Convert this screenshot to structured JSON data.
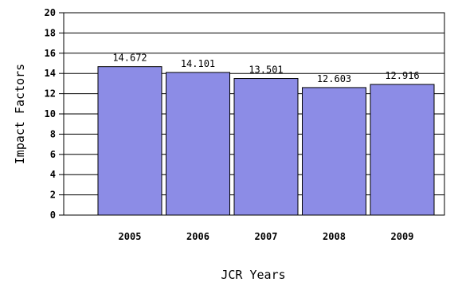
{
  "chart_data": {
    "type": "bar",
    "categories": [
      "2005",
      "2006",
      "2007",
      "2008",
      "2009"
    ],
    "values": [
      14.672,
      14.101,
      13.501,
      12.603,
      12.916
    ],
    "data_labels": [
      "14.672",
      "14.101",
      "13.501",
      "12.603",
      "12.916"
    ],
    "title": "",
    "xlabel": "JCR Years",
    "ylabel": "Impact Factors",
    "ylim": [
      0,
      20
    ],
    "yticks": [
      "0",
      "2",
      "4",
      "6",
      "8",
      "10",
      "12",
      "14",
      "16",
      "18",
      "20"
    ],
    "grid": true,
    "bar_color": "#8c8ce6"
  }
}
